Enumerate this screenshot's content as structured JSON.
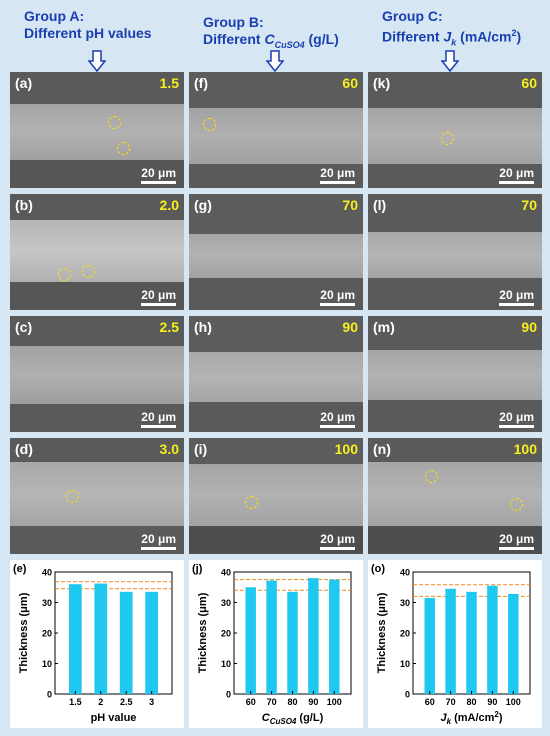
{
  "groups": [
    {
      "title": "Group A:",
      "subtitle": "Different pH values"
    },
    {
      "title": "Group B:",
      "subtitle_prefix": "Different ",
      "subtitle_var": "C",
      "subtitle_sub": "CuSO4",
      "subtitle_suffix": " (g/L)"
    },
    {
      "title": "Group C:",
      "subtitle_prefix": "Different ",
      "subtitle_var": "J",
      "subtitle_sub": "k",
      "subtitle_suffix": " (mA/cm",
      "subtitle_sup": "2",
      "subtitle_end": ")"
    }
  ],
  "scale_label": "20 μm",
  "panels": {
    "a": {
      "label": "(a)",
      "value": "1.5"
    },
    "b": {
      "label": "(b)",
      "value": "2.0"
    },
    "c": {
      "label": "(c)",
      "value": "2.5"
    },
    "d": {
      "label": "(d)",
      "value": "3.0"
    },
    "f": {
      "label": "(f)",
      "value": "60"
    },
    "g": {
      "label": "(g)",
      "value": "70"
    },
    "h": {
      "label": "(h)",
      "value": "90"
    },
    "i": {
      "label": "(i)",
      "value": "100"
    },
    "k": {
      "label": "(k)",
      "value": "60"
    },
    "l": {
      "label": "(l)",
      "value": "70"
    },
    "m": {
      "label": "(m)",
      "value": "90"
    },
    "n": {
      "label": "(n)",
      "value": "100"
    }
  },
  "colors": {
    "bar": "#1ec8f0",
    "ref_line": "#f08a24",
    "title": "#1a3fb0",
    "value_label": "#f6f01c"
  },
  "chart_data": [
    {
      "type": "bar",
      "panel_label": "(e)",
      "categories": [
        "1.5",
        "2",
        "2.5",
        "3"
      ],
      "values": [
        36,
        36.2,
        33.5,
        33.5
      ],
      "ref_lines": [
        34.5,
        36.8
      ],
      "xlabel": "pH value",
      "ylabel": "Thickness (μm)",
      "ylim": [
        0,
        40
      ],
      "yticks": [
        0,
        10,
        20,
        30,
        40
      ]
    },
    {
      "type": "bar",
      "panel_label": "(j)",
      "categories": [
        "60",
        "70",
        "80",
        "90",
        "100"
      ],
      "values": [
        35,
        37.2,
        33.5,
        38,
        37.5
      ],
      "ref_lines": [
        34,
        37.5
      ],
      "xlabel_var": "C",
      "xlabel_sub": "CuSO4",
      "xlabel_suffix": " (g/L)",
      "ylabel": "Thickness (μm)",
      "ylim": [
        0,
        40
      ],
      "yticks": [
        0,
        10,
        20,
        30,
        40
      ]
    },
    {
      "type": "bar",
      "panel_label": "(o)",
      "categories": [
        "60",
        "70",
        "80",
        "90",
        "100"
      ],
      "values": [
        31.5,
        34.5,
        33.5,
        35.5,
        32.8
      ],
      "ref_lines": [
        32,
        35.8
      ],
      "xlabel_var": "J",
      "xlabel_sub": "k",
      "xlabel_suffix": " (mA/cm",
      "xlabel_sup": "2",
      "xlabel_end": ")",
      "ylabel": "Thickness (μm)",
      "ylim": [
        0,
        40
      ],
      "yticks": [
        0,
        10,
        20,
        30,
        40
      ]
    }
  ]
}
